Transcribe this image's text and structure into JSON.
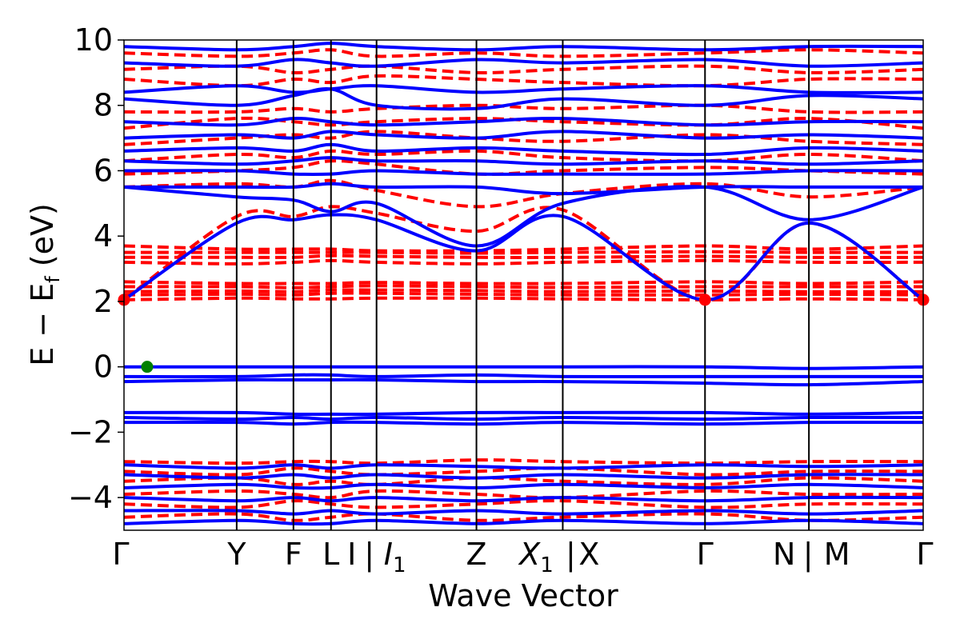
{
  "chart_data": {
    "type": "line",
    "title": "",
    "xlabel": "Wave Vector",
    "ylabel": "E − E",
    "ylabel_sub": "f",
    "ylabel_unit": " (eV)",
    "ylim": [
      -5,
      10
    ],
    "yticks": [
      -4,
      -2,
      0,
      2,
      4,
      6,
      8,
      10
    ],
    "ytick_labels": [
      "−4",
      "−2",
      "0",
      "2",
      "4",
      "6",
      "8",
      "10"
    ],
    "xlim": [
      0,
      1
    ],
    "kpoint_positions": [
      0,
      0.141,
      0.212,
      0.259,
      0.316,
      0.441,
      0.549,
      0.727,
      0.857,
      1.0
    ],
    "xtick_labels": [
      {
        "x": 0.0,
        "text": "Γ"
      },
      {
        "x": 0.141,
        "text": "Y"
      },
      {
        "x": 0.212,
        "text": "F"
      },
      {
        "x": 0.259,
        "text": "L"
      },
      {
        "x": 0.285,
        "text": "I"
      },
      {
        "x": 0.307,
        "text": "|"
      },
      {
        "x": 0.339,
        "text": "I",
        "sub": "1",
        "italic": true
      },
      {
        "x": 0.441,
        "text": "Z"
      },
      {
        "x": 0.516,
        "text": "X",
        "sub": "1",
        "italic": true
      },
      {
        "x": 0.559,
        "text": "|"
      },
      {
        "x": 0.582,
        "text": "X"
      },
      {
        "x": 0.727,
        "text": "Γ"
      },
      {
        "x": 0.826,
        "text": "N"
      },
      {
        "x": 0.856,
        "text": "|"
      },
      {
        "x": 0.892,
        "text": "M"
      },
      {
        "x": 1.0,
        "text": "Γ"
      }
    ],
    "grid": false,
    "legend": "none",
    "series": [
      {
        "style": "dashed",
        "color": "#ff0000",
        "role": "conduction-nonspin",
        "bands": [
          {
            "y": [
              2.05,
              2.1,
              2.08,
              2.08,
              2.1,
              2.1,
              2.08,
              2.05,
              2.08,
              2.05
            ]
          },
          {
            "y": [
              2.2,
              2.22,
              2.2,
              2.25,
              2.25,
              2.22,
              2.2,
              2.2,
              2.22,
              2.2
            ]
          },
          {
            "y": [
              2.3,
              2.32,
              2.3,
              2.35,
              2.35,
              2.33,
              2.3,
              2.32,
              2.3,
              2.3
            ]
          },
          {
            "y": [
              2.45,
              2.45,
              2.42,
              2.45,
              2.48,
              2.45,
              2.43,
              2.45,
              2.45,
              2.45
            ]
          },
          {
            "y": [
              2.6,
              2.55,
              2.55,
              2.55,
              2.58,
              2.55,
              2.55,
              2.6,
              2.55,
              2.6
            ]
          },
          {
            "y": [
              3.2,
              3.15,
              3.2,
              3.25,
              3.2,
              3.15,
              3.2,
              3.25,
              3.2,
              3.2
            ]
          },
          {
            "y": [
              3.35,
              3.35,
              3.35,
              3.4,
              3.38,
              3.35,
              3.35,
              3.38,
              3.35,
              3.35
            ]
          },
          {
            "y": [
              3.5,
              3.5,
              3.5,
              3.5,
              3.5,
              3.48,
              3.5,
              3.52,
              3.5,
              3.5
            ]
          },
          {
            "y": [
              3.7,
              3.6,
              3.6,
              3.6,
              3.55,
              3.55,
              3.6,
              3.7,
              3.6,
              3.7
            ]
          },
          {
            "y": [
              2.05,
              4.6,
              4.6,
              4.9,
              4.7,
              4.15,
              4.8,
              2.05,
              4.4,
              2.05
            ]
          },
          {
            "y": [
              5.5,
              5.6,
              5.5,
              5.7,
              5.4,
              4.9,
              5.3,
              5.6,
              5.2,
              5.5
            ]
          },
          {
            "y": [
              5.9,
              6.0,
              6.1,
              6.3,
              6.2,
              5.9,
              6.0,
              6.1,
              6.0,
              5.9
            ]
          },
          {
            "y": [
              6.3,
              6.5,
              6.4,
              6.6,
              6.5,
              6.6,
              6.4,
              6.3,
              6.5,
              6.3
            ]
          },
          {
            "y": [
              6.8,
              7.0,
              7.1,
              7.0,
              7.2,
              7.0,
              6.9,
              7.1,
              6.9,
              6.8
            ]
          },
          {
            "y": [
              7.3,
              7.6,
              7.5,
              7.4,
              7.5,
              7.6,
              7.5,
              7.4,
              7.6,
              7.3
            ]
          },
          {
            "y": [
              7.8,
              7.8,
              7.9,
              7.8,
              7.9,
              8.0,
              7.9,
              8.0,
              7.8,
              7.8
            ]
          },
          {
            "y": [
              8.8,
              8.6,
              8.8,
              8.7,
              8.9,
              8.8,
              8.7,
              8.6,
              8.8,
              8.8
            ]
          },
          {
            "y": [
              9.1,
              9.2,
              9.0,
              9.1,
              9.2,
              9.0,
              9.1,
              9.2,
              9.0,
              9.1
            ]
          },
          {
            "y": [
              9.6,
              9.5,
              9.6,
              9.7,
              9.5,
              9.6,
              9.5,
              9.6,
              9.7,
              9.6
            ]
          },
          {
            "y": [
              -2.9,
              -2.95,
              -2.9,
              -2.9,
              -2.95,
              -2.85,
              -2.9,
              -2.95,
              -2.9,
              -2.9
            ]
          },
          {
            "y": [
              -3.2,
              -3.3,
              -3.1,
              -3.2,
              -3.3,
              -3.2,
              -3.1,
              -3.3,
              -3.2,
              -3.2
            ]
          },
          {
            "y": [
              -3.5,
              -3.4,
              -3.6,
              -3.5,
              -3.6,
              -3.4,
              -3.5,
              -3.6,
              -3.4,
              -3.5
            ]
          },
          {
            "y": [
              -3.9,
              -3.8,
              -3.9,
              -4.0,
              -3.8,
              -3.9,
              -4.0,
              -3.8,
              -3.9,
              -3.9
            ]
          },
          {
            "y": [
              -4.2,
              -4.3,
              -4.1,
              -4.2,
              -4.3,
              -4.2,
              -4.1,
              -4.3,
              -4.2,
              -4.2
            ]
          },
          {
            "y": [
              -4.6,
              -4.5,
              -4.7,
              -4.6,
              -4.5,
              -4.7,
              -4.6,
              -4.5,
              -4.7,
              -4.6
            ]
          }
        ]
      },
      {
        "style": "solid",
        "color": "#0000ff",
        "role": "spin-polarized",
        "bands": [
          {
            "y": [
              2.05,
              4.4,
              4.5,
              4.65,
              4.5,
              3.55,
              4.6,
              2.05,
              4.4,
              2.05
            ]
          },
          {
            "y": [
              5.5,
              5.2,
              5.1,
              4.75,
              5.0,
              3.7,
              5.0,
              5.5,
              4.5,
              5.5
            ]
          },
          {
            "y": [
              5.5,
              5.5,
              5.5,
              5.6,
              5.5,
              5.5,
              5.3,
              5.5,
              5.5,
              5.5
            ]
          },
          {
            "y": [
              6.0,
              6.0,
              5.9,
              5.9,
              6.0,
              5.9,
              5.9,
              5.9,
              6.0,
              6.0
            ]
          },
          {
            "y": [
              6.3,
              6.2,
              6.3,
              6.4,
              6.3,
              6.3,
              6.2,
              6.3,
              6.2,
              6.3
            ]
          },
          {
            "y": [
              6.6,
              6.7,
              6.6,
              6.8,
              6.6,
              6.7,
              6.6,
              6.5,
              6.7,
              6.6
            ]
          },
          {
            "y": [
              7.0,
              7.1,
              7.0,
              7.2,
              7.1,
              7.0,
              7.2,
              7.0,
              7.1,
              7.0
            ]
          },
          {
            "y": [
              7.5,
              7.4,
              7.6,
              7.5,
              7.4,
              7.5,
              7.6,
              7.4,
              7.5,
              7.5
            ]
          },
          {
            "y": [
              8.2,
              8.0,
              8.3,
              8.5,
              8.0,
              7.9,
              8.2,
              8.0,
              8.3,
              8.2
            ]
          },
          {
            "y": [
              8.4,
              8.6,
              8.4,
              8.5,
              8.6,
              8.4,
              8.5,
              8.6,
              8.4,
              8.4
            ]
          },
          {
            "y": [
              9.3,
              9.2,
              9.4,
              9.3,
              9.2,
              9.4,
              9.3,
              9.4,
              9.2,
              9.3
            ]
          },
          {
            "y": [
              9.8,
              9.7,
              9.8,
              9.9,
              9.8,
              9.7,
              9.8,
              9.7,
              9.8,
              9.8
            ]
          },
          {
            "y": [
              0.0,
              0.0,
              0.0,
              0.0,
              0.0,
              0.0,
              0.0,
              0.0,
              -0.05,
              0.0
            ]
          },
          {
            "y": [
              -0.3,
              -0.3,
              -0.25,
              -0.25,
              -0.3,
              -0.25,
              -0.3,
              -0.3,
              -0.3,
              -0.3
            ]
          },
          {
            "y": [
              -0.45,
              -0.4,
              -0.4,
              -0.4,
              -0.4,
              -0.45,
              -0.45,
              -0.5,
              -0.55,
              -0.45
            ]
          },
          {
            "y": [
              -1.4,
              -1.4,
              -1.45,
              -1.45,
              -1.45,
              -1.4,
              -1.4,
              -1.4,
              -1.45,
              -1.4
            ]
          },
          {
            "y": [
              -1.55,
              -1.6,
              -1.55,
              -1.6,
              -1.55,
              -1.6,
              -1.55,
              -1.6,
              -1.55,
              -1.55
            ]
          },
          {
            "y": [
              -1.7,
              -1.7,
              -1.75,
              -1.7,
              -1.7,
              -1.75,
              -1.7,
              -1.75,
              -1.7,
              -1.7
            ]
          },
          {
            "y": [
              -3.0,
              -3.1,
              -3.0,
              -3.1,
              -3.0,
              -3.05,
              -3.1,
              -3.0,
              -3.05,
              -3.0
            ]
          },
          {
            "y": [
              -3.3,
              -3.4,
              -3.3,
              -3.4,
              -3.3,
              -3.4,
              -3.3,
              -3.4,
              -3.3,
              -3.3
            ]
          },
          {
            "y": [
              -3.7,
              -3.6,
              -3.7,
              -3.7,
              -3.6,
              -3.7,
              -3.6,
              -3.7,
              -3.6,
              -3.7
            ]
          },
          {
            "y": [
              -4.0,
              -4.1,
              -4.0,
              -4.1,
              -4.0,
              -4.1,
              -4.0,
              -4.1,
              -4.0,
              -4.0
            ]
          },
          {
            "y": [
              -4.4,
              -4.4,
              -4.5,
              -4.4,
              -4.5,
              -4.4,
              -4.5,
              -4.4,
              -4.5,
              -4.4
            ]
          },
          {
            "y": [
              -4.8,
              -4.7,
              -4.8,
              -4.8,
              -4.7,
              -4.8,
              -4.7,
              -4.8,
              -4.7,
              -4.8
            ]
          }
        ]
      }
    ],
    "markers": [
      {
        "x": 0.0,
        "y": 2.05,
        "color": "#ff0000"
      },
      {
        "x": 0.727,
        "y": 2.05,
        "color": "#ff0000"
      },
      {
        "x": 1.0,
        "y": 2.05,
        "color": "#ff0000"
      },
      {
        "x": 0.029,
        "y": 0.0,
        "color": "#008000"
      }
    ]
  }
}
